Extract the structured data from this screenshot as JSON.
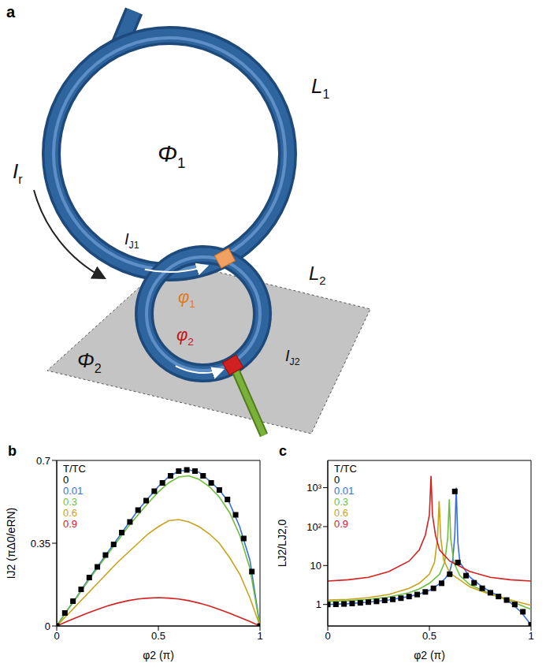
{
  "panel_labels": [
    "a",
    "b",
    "c"
  ],
  "diagram": {
    "labels": {
      "flux_1": "Φ1",
      "inductance_1": "L1",
      "ring_current": "Ir",
      "junction_current_1": "IJ1",
      "phase_1": "φ1",
      "inductance_2": "L2",
      "flux_2": "Φ2",
      "phase_2": "φ2",
      "junction_current_2": "IJ2"
    }
  },
  "chart_data": [
    {
      "type": "line",
      "x_label": "φ2 (π)",
      "y_label": "IJ2 (πΔ0/eRN)",
      "legend_title": "T/TC",
      "legend": "upper left",
      "xlim": [
        0,
        1
      ],
      "xticks": [
        0,
        0.5,
        1
      ],
      "ylim": [
        0,
        0.7
      ],
      "yticks": [
        0,
        0.35,
        0.7
      ],
      "series": [
        {
          "name": "0",
          "color": "#000000",
          "marker": "square",
          "line_style": "none",
          "x": [
            0,
            0.04,
            0.08,
            0.12,
            0.16,
            0.2,
            0.24,
            0.28,
            0.32,
            0.36,
            0.4,
            0.44,
            0.48,
            0.52,
            0.56,
            0.6,
            0.64,
            0.68,
            0.72,
            0.76,
            0.8,
            0.84,
            0.88,
            0.92,
            0.96,
            1
          ],
          "values": [
            0,
            0.055,
            0.105,
            0.155,
            0.205,
            0.25,
            0.3,
            0.345,
            0.395,
            0.44,
            0.49,
            0.53,
            0.57,
            0.605,
            0.635,
            0.655,
            0.66,
            0.655,
            0.635,
            0.605,
            0.575,
            0.535,
            0.47,
            0.37,
            0.23,
            0
          ]
        },
        {
          "name": "0.01",
          "color": "#3a6fd8",
          "marker": "none",
          "line_style": "solid",
          "x": [
            0,
            0.05,
            0.1,
            0.15,
            0.2,
            0.25,
            0.3,
            0.35,
            0.4,
            0.45,
            0.5,
            0.55,
            0.6,
            0.65,
            0.7,
            0.75,
            0.8,
            0.85,
            0.9,
            0.95,
            1
          ],
          "values": [
            0,
            0.065,
            0.125,
            0.19,
            0.25,
            0.31,
            0.37,
            0.43,
            0.49,
            0.54,
            0.59,
            0.63,
            0.655,
            0.66,
            0.65,
            0.615,
            0.575,
            0.52,
            0.42,
            0.28,
            0
          ]
        },
        {
          "name": "0.3",
          "color": "#6cbf3c",
          "marker": "none",
          "line_style": "solid",
          "x": [
            0,
            0.05,
            0.1,
            0.15,
            0.2,
            0.25,
            0.3,
            0.35,
            0.4,
            0.45,
            0.5,
            0.55,
            0.6,
            0.65,
            0.7,
            0.75,
            0.8,
            0.85,
            0.9,
            0.95,
            1
          ],
          "values": [
            0,
            0.063,
            0.123,
            0.185,
            0.245,
            0.303,
            0.36,
            0.418,
            0.47,
            0.52,
            0.567,
            0.605,
            0.63,
            0.635,
            0.62,
            0.59,
            0.545,
            0.48,
            0.385,
            0.245,
            0
          ]
        },
        {
          "name": "0.6",
          "color": "#c9a21a",
          "marker": "none",
          "line_style": "solid",
          "x": [
            0,
            0.05,
            0.1,
            0.15,
            0.2,
            0.25,
            0.3,
            0.35,
            0.4,
            0.45,
            0.5,
            0.55,
            0.6,
            0.65,
            0.7,
            0.75,
            0.8,
            0.85,
            0.9,
            0.95,
            1
          ],
          "values": [
            0,
            0.045,
            0.09,
            0.135,
            0.18,
            0.225,
            0.27,
            0.31,
            0.35,
            0.39,
            0.42,
            0.445,
            0.45,
            0.44,
            0.42,
            0.39,
            0.35,
            0.29,
            0.22,
            0.12,
            0
          ]
        },
        {
          "name": "0.9",
          "color": "#d42020",
          "marker": "none",
          "line_style": "solid",
          "x": [
            0,
            0.05,
            0.1,
            0.15,
            0.2,
            0.25,
            0.3,
            0.35,
            0.4,
            0.45,
            0.5,
            0.55,
            0.6,
            0.65,
            0.7,
            0.75,
            0.8,
            0.85,
            0.9,
            0.95,
            1
          ],
          "values": [
            0,
            0.019,
            0.037,
            0.054,
            0.07,
            0.085,
            0.097,
            0.107,
            0.114,
            0.118,
            0.12,
            0.118,
            0.114,
            0.107,
            0.097,
            0.085,
            0.07,
            0.054,
            0.037,
            0.019,
            0
          ]
        }
      ]
    },
    {
      "type": "line",
      "x_label": "φ2 (π)",
      "y_label": "LJ2/LJ2,0",
      "legend_title": "T/TC",
      "legend": "upper left",
      "log": "y",
      "xlim": [
        0,
        1
      ],
      "xticks": [
        0,
        0.5,
        1
      ],
      "ylim": [
        0.28,
        5000
      ],
      "yticks": [
        1,
        10,
        {
          "value": 100,
          "label": "10²"
        },
        {
          "value": 1000,
          "label": "10³"
        }
      ],
      "series": [
        {
          "name": "0",
          "color": "#000000",
          "marker": "square",
          "line_style": "none",
          "x": [
            0,
            0.04,
            0.08,
            0.12,
            0.16,
            0.2,
            0.24,
            0.28,
            0.32,
            0.36,
            0.4,
            0.44,
            0.48,
            0.52,
            0.56,
            0.6,
            0.625,
            0.64,
            0.68,
            0.72,
            0.76,
            0.8,
            0.84,
            0.88,
            0.92,
            0.96,
            1
          ],
          "values": [
            1,
            1.01,
            1.03,
            1.06,
            1.1,
            1.15,
            1.2,
            1.27,
            1.35,
            1.45,
            1.6,
            1.8,
            2.1,
            2.6,
            3.5,
            6,
            800,
            12,
            5.5,
            3.6,
            2.6,
            2,
            1.6,
            1.3,
            1,
            0.65,
            0.3
          ]
        },
        {
          "name": "0.01",
          "color": "#3a6fd8",
          "marker": "none",
          "line_style": "solid",
          "x": [
            0,
            0.1,
            0.2,
            0.3,
            0.4,
            0.45,
            0.5,
            0.55,
            0.58,
            0.6,
            0.615,
            0.625,
            0.632,
            0.64,
            0.65,
            0.7,
            0.75,
            0.8,
            0.85,
            0.9,
            0.95,
            1
          ],
          "values": [
            1,
            1.05,
            1.15,
            1.3,
            1.6,
            1.85,
            2.3,
            3.4,
            4.8,
            7,
            14,
            60,
            1000,
            40,
            12,
            5,
            3.1,
            2.1,
            1.6,
            1.1,
            0.65,
            0.3
          ]
        },
        {
          "name": "0.3",
          "color": "#6cbf3c",
          "marker": "none",
          "line_style": "solid",
          "x": [
            0,
            0.1,
            0.2,
            0.3,
            0.4,
            0.45,
            0.5,
            0.55,
            0.575,
            0.59,
            0.598,
            0.605,
            0.62,
            0.65,
            0.7,
            0.8,
            0.9,
            1
          ],
          "values": [
            1.2,
            1.25,
            1.35,
            1.55,
            2,
            2.5,
            3.5,
            6,
            12,
            50,
            500,
            50,
            12,
            5.5,
            3.2,
            1.9,
            1.2,
            0.75
          ]
        },
        {
          "name": "0.6",
          "color": "#c9a21a",
          "marker": "none",
          "line_style": "solid",
          "x": [
            0,
            0.1,
            0.2,
            0.3,
            0.4,
            0.45,
            0.5,
            0.525,
            0.54,
            0.548,
            0.556,
            0.57,
            0.6,
            0.7,
            0.8,
            0.9,
            1
          ],
          "values": [
            1.3,
            1.35,
            1.5,
            1.8,
            2.6,
            3.5,
            6,
            12,
            50,
            450,
            50,
            14,
            6.5,
            2.8,
            1.8,
            1.3,
            0.95
          ]
        },
        {
          "name": "0.9",
          "color": "#d42020",
          "marker": "none",
          "line_style": "solid",
          "x": [
            0,
            0.1,
            0.2,
            0.3,
            0.4,
            0.45,
            0.48,
            0.5,
            0.508,
            0.515,
            0.53,
            0.55,
            0.6,
            0.7,
            0.8,
            0.9,
            1
          ],
          "values": [
            4,
            4.3,
            5,
            7,
            13,
            25,
            60,
            200,
            2000,
            200,
            60,
            25,
            13,
            7,
            5,
            4.3,
            4
          ]
        }
      ]
    }
  ]
}
